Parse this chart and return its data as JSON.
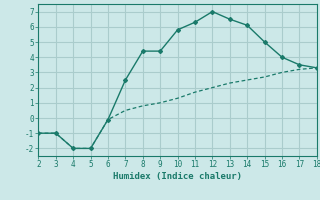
{
  "title": "",
  "xlabel": "Humidex (Indice chaleur)",
  "bg_color": "#cce8e8",
  "grid_color": "#aacccc",
  "line_color": "#1a7a6a",
  "x_main": [
    2,
    3,
    4,
    5,
    6,
    7,
    8,
    9,
    10,
    11,
    12,
    13,
    14,
    15,
    16,
    17,
    18
  ],
  "y_main": [
    -1,
    -1,
    -2,
    -2,
    -0.1,
    2.5,
    4.4,
    4.4,
    5.8,
    6.3,
    7.0,
    6.5,
    6.1,
    5.0,
    4.0,
    3.5,
    3.3
  ],
  "x_trend": [
    2,
    3,
    4,
    5,
    6,
    7,
    8,
    9,
    10,
    11,
    12,
    13,
    14,
    15,
    16,
    17,
    18
  ],
  "y_trend": [
    -1.0,
    -1.0,
    -2.0,
    -2.0,
    -0.1,
    0.5,
    0.8,
    1.0,
    1.3,
    1.7,
    2.0,
    2.3,
    2.5,
    2.7,
    3.0,
    3.2,
    3.3
  ],
  "xlim": [
    2,
    18
  ],
  "ylim": [
    -2.5,
    7.5
  ],
  "xticks": [
    2,
    3,
    4,
    5,
    6,
    7,
    8,
    9,
    10,
    11,
    12,
    13,
    14,
    15,
    16,
    17,
    18
  ],
  "yticks": [
    -2,
    -1,
    0,
    1,
    2,
    3,
    4,
    5,
    6,
    7
  ],
  "tick_fontsize": 5.5,
  "xlabel_fontsize": 6.5
}
